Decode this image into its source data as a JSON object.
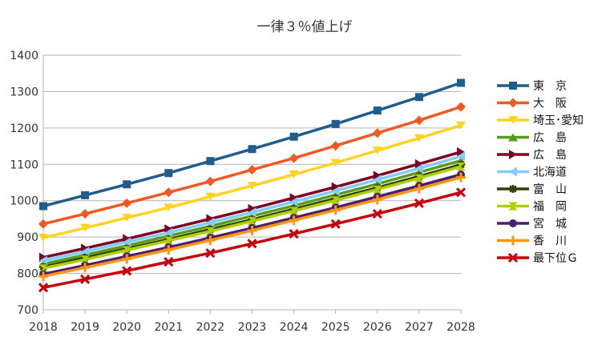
{
  "chart_data": {
    "type": "line",
    "title": "一律３％値上げ",
    "xlabel": "",
    "ylabel": "",
    "x": [
      2018,
      2019,
      2020,
      2021,
      2022,
      2023,
      2024,
      2025,
      2026,
      2027,
      2028
    ],
    "ylim": [
      700,
      1400
    ],
    "yticks": [
      700,
      800,
      900,
      1000,
      1100,
      1200,
      1300,
      1400
    ],
    "grid": true,
    "legend_position": "right",
    "series": [
      {
        "name": "東　京",
        "color": "#1f5d8c",
        "marker": "square",
        "values": [
          985,
          1015,
          1045,
          1076,
          1109,
          1142,
          1176,
          1211,
          1248,
          1285,
          1324
        ]
      },
      {
        "name": "大　阪",
        "color": "#f05a22",
        "marker": "diamond",
        "values": [
          936,
          964,
          993,
          1023,
          1053,
          1085,
          1117,
          1151,
          1186,
          1221,
          1258
        ]
      },
      {
        "name": "埼玉･愛知",
        "color": "#ffd320",
        "marker": "triangle-down",
        "values": [
          898,
          925,
          953,
          981,
          1011,
          1041,
          1072,
          1104,
          1138,
          1172,
          1207
        ]
      },
      {
        "name": "広　島",
        "color": "#579d1c",
        "marker": "triangle-up",
        "values": [
          826,
          851,
          876,
          903,
          930,
          958,
          986,
          1016,
          1046,
          1078,
          1110
        ]
      },
      {
        "name": "広　島",
        "color": "#7e0021",
        "marker": "triangle-right",
        "values": [
          844,
          869,
          895,
          922,
          950,
          978,
          1008,
          1038,
          1069,
          1101,
          1134
        ]
      },
      {
        "name": "北海道",
        "color": "#83caff",
        "marker": "triangle-left",
        "values": [
          835,
          860,
          886,
          912,
          940,
          968,
          997,
          1027,
          1058,
          1089,
          1122
        ]
      },
      {
        "name": "富　山",
        "color": "#314004",
        "marker": "star",
        "values": [
          818,
          843,
          868,
          894,
          921,
          948,
          977,
          1006,
          1036,
          1067,
          1099
        ]
      },
      {
        "name": "福　岡",
        "color": "#aecf00",
        "marker": "bowtie",
        "values": [
          814,
          838,
          864,
          890,
          916,
          944,
          972,
          1001,
          1031,
          1062,
          1094
        ]
      },
      {
        "name": "宮　城",
        "color": "#4b1f6f",
        "marker": "circle",
        "values": [
          798,
          822,
          847,
          872,
          898,
          925,
          953,
          981,
          1011,
          1041,
          1072
        ]
      },
      {
        "name": "香　川",
        "color": "#ff950e",
        "marker": "plus",
        "values": [
          792,
          816,
          840,
          865,
          891,
          918,
          946,
          974,
          1003,
          1033,
          1064
        ]
      },
      {
        "name": "最下位Ｇ",
        "color": "#c5000b",
        "marker": "x",
        "values": [
          761,
          784,
          807,
          832,
          856,
          882,
          909,
          936,
          964,
          993,
          1023
        ]
      }
    ]
  }
}
